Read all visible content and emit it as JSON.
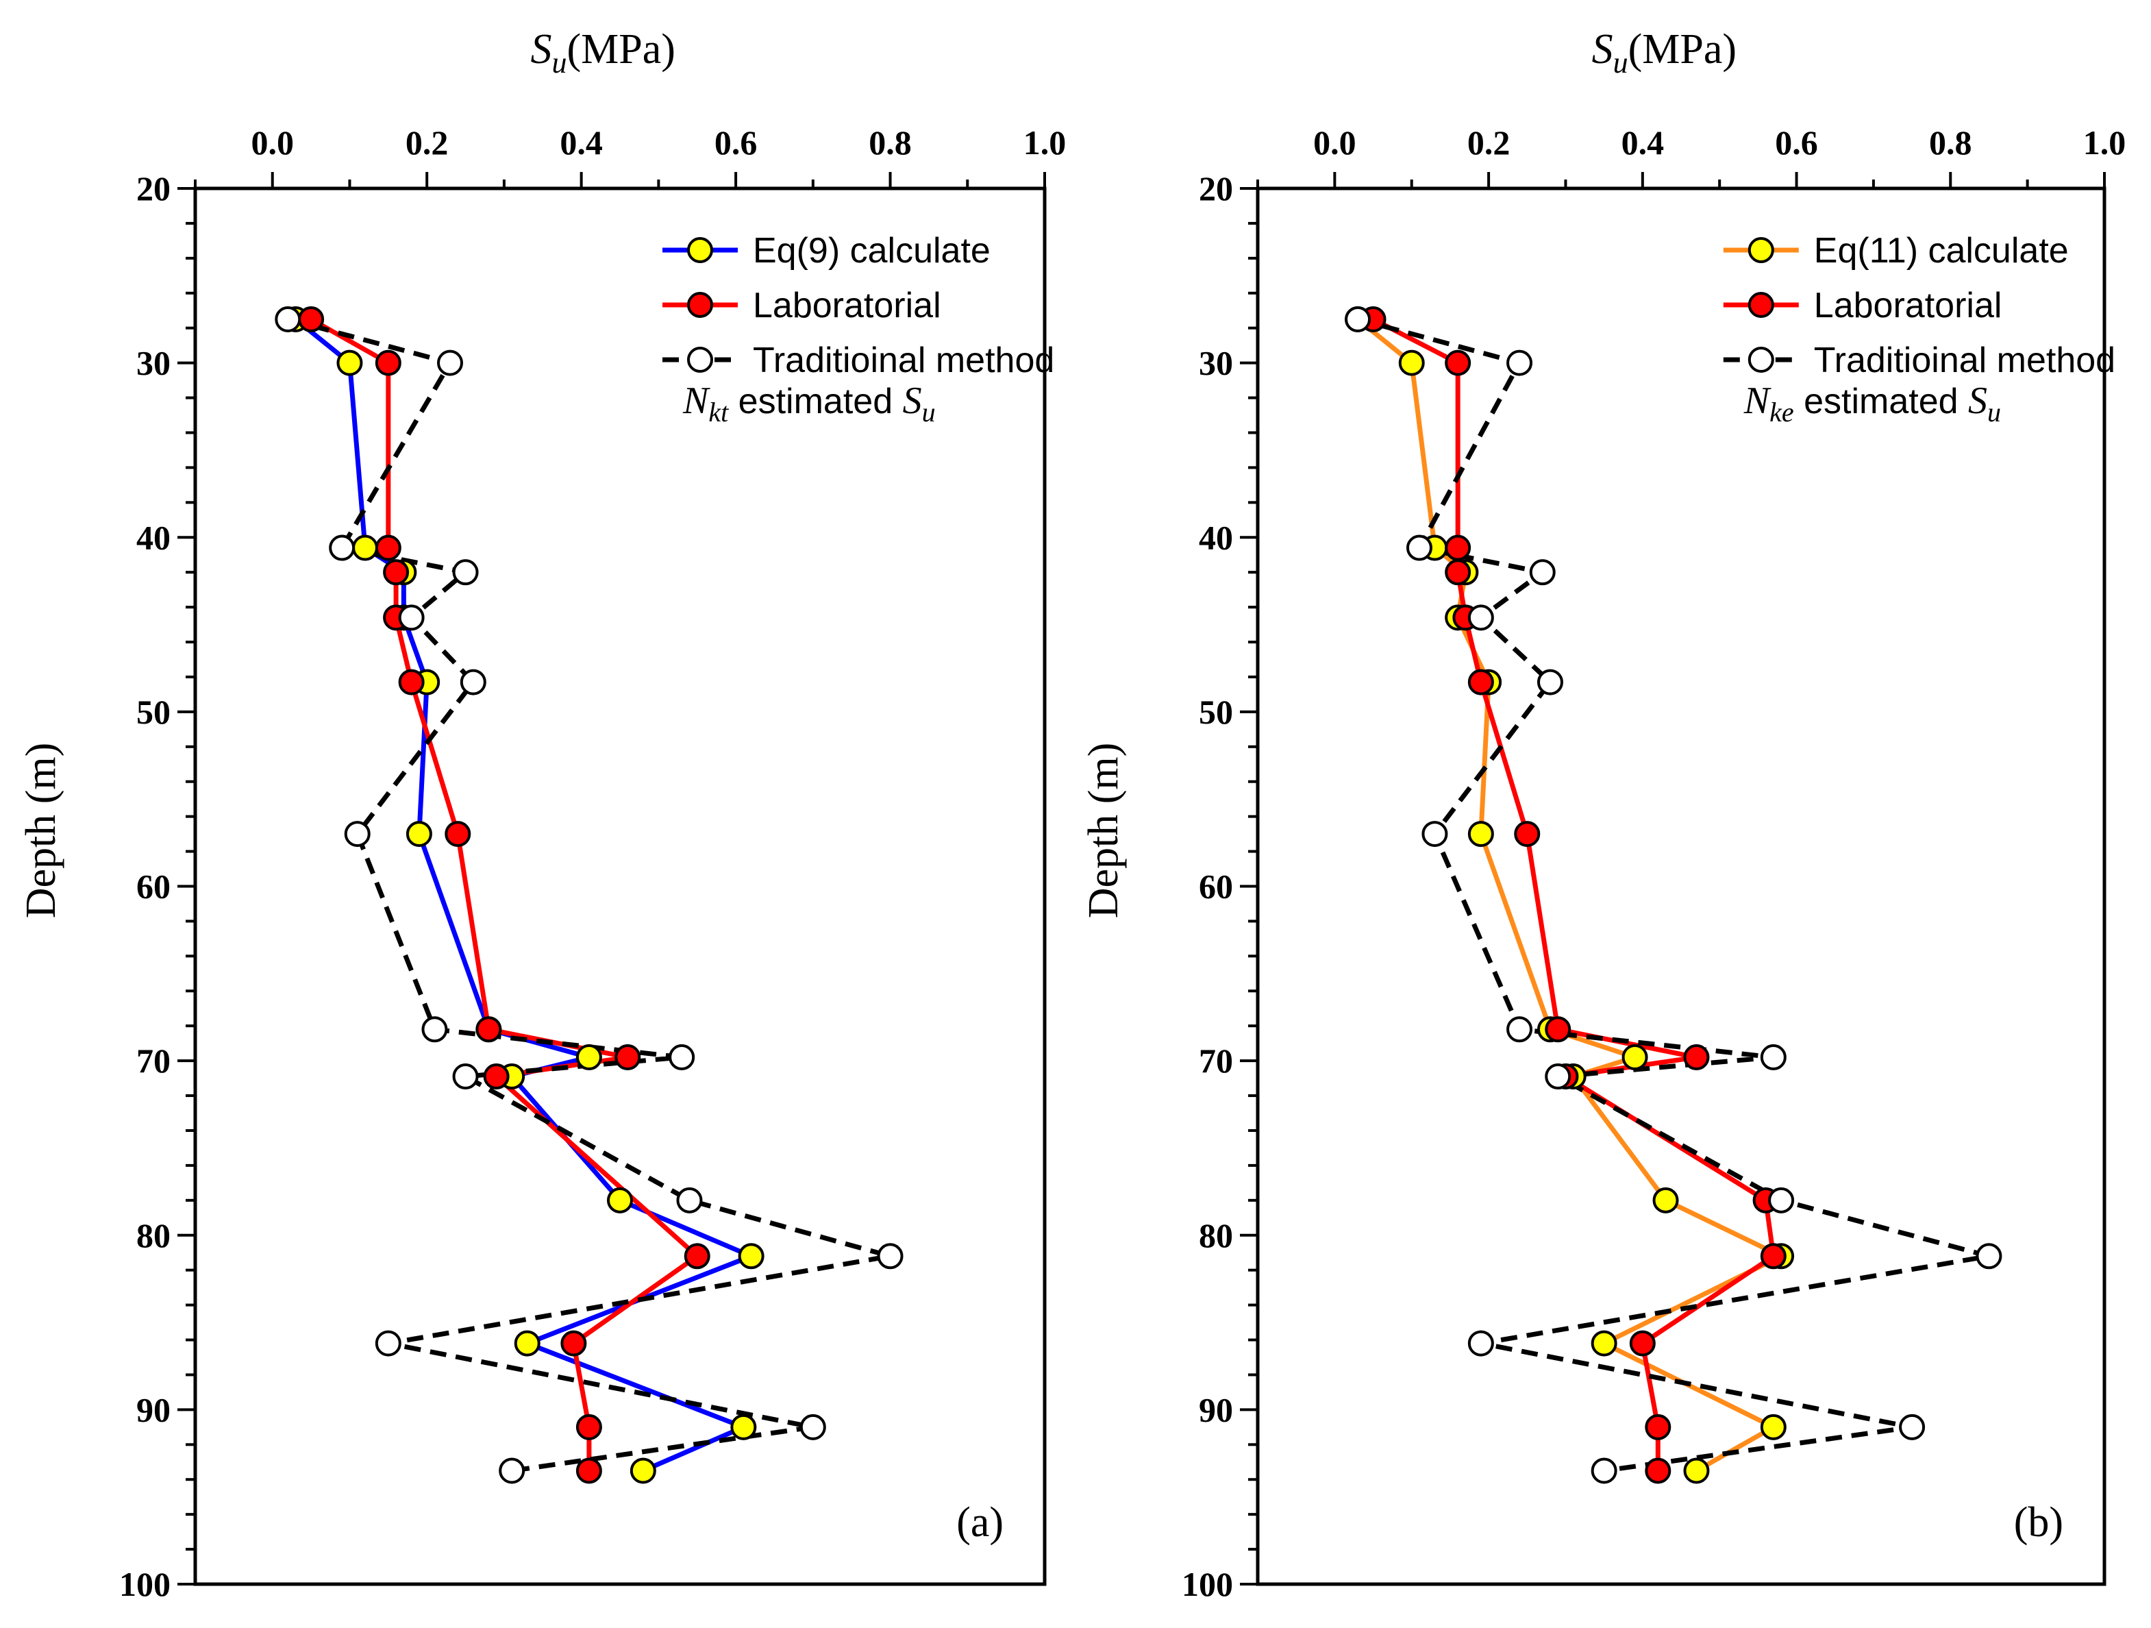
{
  "chart_data": [
    {
      "type": "line",
      "panel_label": "(a)",
      "xlabel_main": "S",
      "xlabel_sub": "u",
      "xlabel_unit": "(MPa)",
      "ylabel": "Depth (m)",
      "xlim": [
        -0.1,
        1.0
      ],
      "ylim": [
        20,
        100
      ],
      "y_inverted": true,
      "x_axis_position": "top",
      "x_ticks": [
        "0.0",
        "0.2",
        "0.4",
        "0.6",
        "0.8",
        "1.0"
      ],
      "x_tick_values": [
        0.0,
        0.2,
        0.4,
        0.6,
        0.8,
        1.0
      ],
      "y_ticks": [
        "20",
        "30",
        "40",
        "50",
        "60",
        "70",
        "80",
        "90",
        "100"
      ],
      "y_tick_values": [
        20,
        30,
        40,
        50,
        60,
        70,
        80,
        90,
        100
      ],
      "legend_position": "top-right",
      "note": {
        "prefix": "N",
        "prefix_sub": "kt",
        "text": " estimated ",
        "suffix": "S",
        "suffix_sub": "u"
      },
      "series": [
        {
          "name": "Eq(9) calculate",
          "line_color": "#0000ff",
          "marker_fill": "#ffff00",
          "dashed": false,
          "points": [
            [
              0.03,
              27.5
            ],
            [
              0.1,
              30.0
            ],
            [
              0.12,
              40.6
            ],
            [
              0.17,
              42.0
            ],
            [
              0.17,
              44.6
            ],
            [
              0.2,
              48.3
            ],
            [
              0.19,
              57.0
            ],
            [
              0.28,
              68.2
            ],
            [
              0.41,
              69.8
            ],
            [
              0.31,
              70.9
            ],
            [
              0.45,
              78.0
            ],
            [
              0.62,
              81.2
            ],
            [
              0.33,
              86.2
            ],
            [
              0.61,
              91.0
            ],
            [
              0.48,
              93.5
            ]
          ]
        },
        {
          "name": "Laboratorial",
          "line_color": "#ff0000",
          "marker_fill": "#ff0000",
          "dashed": false,
          "points": [
            [
              0.05,
              27.5
            ],
            [
              0.15,
              30.0
            ],
            [
              0.15,
              40.6
            ],
            [
              0.16,
              42.0
            ],
            [
              0.16,
              44.6
            ],
            [
              0.18,
              48.3
            ],
            [
              0.24,
              57.0
            ],
            [
              0.28,
              68.2
            ],
            [
              0.46,
              69.8
            ],
            [
              0.29,
              70.9
            ],
            [
              0.55,
              81.2
            ],
            [
              0.39,
              86.2
            ],
            [
              0.41,
              91.0
            ],
            [
              0.41,
              93.5
            ]
          ]
        },
        {
          "name": "Traditioinal method",
          "line_color": "#000000",
          "marker_fill": "#ffffff",
          "dashed": true,
          "points": [
            [
              0.02,
              27.5
            ],
            [
              0.23,
              30.0
            ],
            [
              0.09,
              40.6
            ],
            [
              0.25,
              42.0
            ],
            [
              0.18,
              44.6
            ],
            [
              0.26,
              48.3
            ],
            [
              0.11,
              57.0
            ],
            [
              0.21,
              68.2
            ],
            [
              0.53,
              69.8
            ],
            [
              0.25,
              70.9
            ],
            [
              0.54,
              78.0
            ],
            [
              0.8,
              81.2
            ],
            [
              0.15,
              86.2
            ],
            [
              0.7,
              91.0
            ],
            [
              0.31,
              93.5
            ]
          ]
        }
      ]
    },
    {
      "type": "line",
      "panel_label": "(b)",
      "xlabel_main": "S",
      "xlabel_sub": "u",
      "xlabel_unit": "(MPa)",
      "ylabel": "Depth (m)",
      "xlim": [
        -0.1,
        1.0
      ],
      "ylim": [
        20,
        100
      ],
      "y_inverted": true,
      "x_axis_position": "top",
      "x_ticks": [
        "0.0",
        "0.2",
        "0.4",
        "0.6",
        "0.8",
        "1.0"
      ],
      "x_tick_values": [
        0.0,
        0.2,
        0.4,
        0.6,
        0.8,
        1.0
      ],
      "y_ticks": [
        "20",
        "30",
        "40",
        "50",
        "60",
        "70",
        "80",
        "90",
        "100"
      ],
      "y_tick_values": [
        20,
        30,
        40,
        50,
        60,
        70,
        80,
        90,
        100
      ],
      "legend_position": "top-right",
      "note": {
        "prefix": "N",
        "prefix_sub": "ke",
        "text": " estimated ",
        "suffix": "S",
        "suffix_sub": "u"
      },
      "series": [
        {
          "name": "Eq(11) calculate",
          "line_color": "#ff8c1a",
          "marker_fill": "#ffff00",
          "dashed": false,
          "points": [
            [
              0.03,
              27.5
            ],
            [
              0.1,
              30.0
            ],
            [
              0.13,
              40.6
            ],
            [
              0.17,
              42.0
            ],
            [
              0.16,
              44.6
            ],
            [
              0.2,
              48.3
            ],
            [
              0.19,
              57.0
            ],
            [
              0.28,
              68.2
            ],
            [
              0.39,
              69.8
            ],
            [
              0.31,
              70.9
            ],
            [
              0.43,
              78.0
            ],
            [
              0.58,
              81.2
            ],
            [
              0.35,
              86.2
            ],
            [
              0.57,
              91.0
            ],
            [
              0.47,
              93.5
            ]
          ]
        },
        {
          "name": "Laboratorial",
          "line_color": "#ff0000",
          "marker_fill": "#ff0000",
          "dashed": false,
          "points": [
            [
              0.05,
              27.5
            ],
            [
              0.16,
              30.0
            ],
            [
              0.16,
              40.6
            ],
            [
              0.16,
              42.0
            ],
            [
              0.17,
              44.6
            ],
            [
              0.19,
              48.3
            ],
            [
              0.25,
              57.0
            ],
            [
              0.29,
              68.2
            ],
            [
              0.47,
              69.8
            ],
            [
              0.3,
              70.9
            ],
            [
              0.56,
              78.0
            ],
            [
              0.57,
              81.2
            ],
            [
              0.4,
              86.2
            ],
            [
              0.42,
              91.0
            ],
            [
              0.42,
              93.5
            ]
          ]
        },
        {
          "name": "Traditioinal method",
          "line_color": "#000000",
          "marker_fill": "#ffffff",
          "dashed": true,
          "points": [
            [
              0.03,
              27.5
            ],
            [
              0.24,
              30.0
            ],
            [
              0.11,
              40.6
            ],
            [
              0.27,
              42.0
            ],
            [
              0.19,
              44.6
            ],
            [
              0.28,
              48.3
            ],
            [
              0.13,
              57.0
            ],
            [
              0.24,
              68.2
            ],
            [
              0.57,
              69.8
            ],
            [
              0.29,
              70.9
            ],
            [
              0.58,
              78.0
            ],
            [
              0.85,
              81.2
            ],
            [
              0.19,
              86.2
            ],
            [
              0.75,
              91.0
            ],
            [
              0.35,
              93.5
            ]
          ]
        }
      ]
    }
  ]
}
